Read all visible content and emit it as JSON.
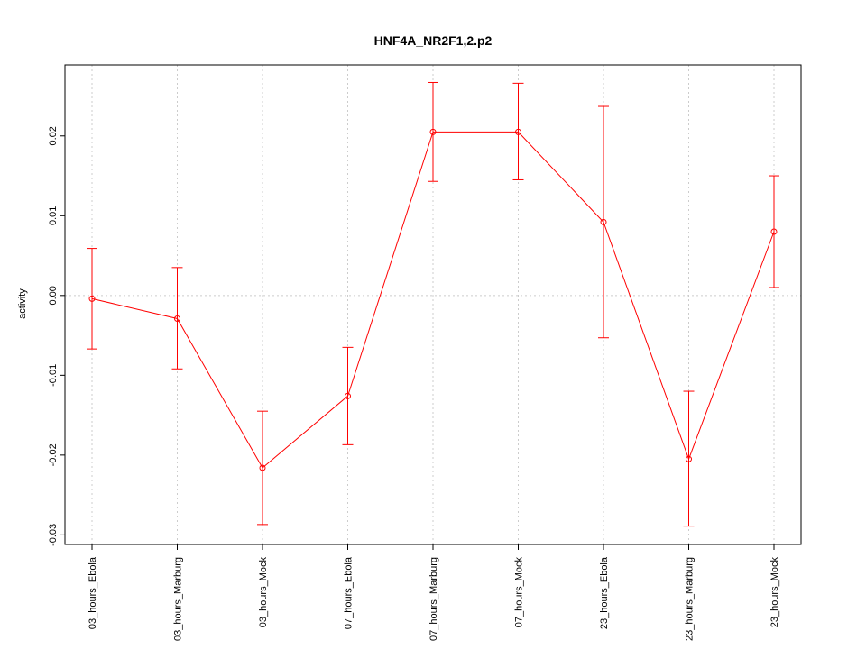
{
  "chart_data": {
    "type": "line",
    "title": "HNF4A_NR2F1,2.p2",
    "xlabel": "",
    "ylabel": "activity",
    "categories": [
      "03_hours_Ebola",
      "03_hours_Marburg",
      "03_hours_Mock",
      "07_hours_Ebola",
      "07_hours_Marburg",
      "07_hours_Mock",
      "23_hours_Ebola",
      "23_hours_Marburg",
      "23_hours_Mock"
    ],
    "values": [
      -0.0004,
      -0.0029,
      -0.0216,
      -0.0126,
      0.0205,
      0.0205,
      0.0092,
      -0.0205,
      0.008
    ],
    "error_low": [
      -0.0067,
      -0.0092,
      -0.0287,
      -0.0187,
      0.0143,
      0.0145,
      -0.0053,
      -0.0289,
      0.001
    ],
    "error_high": [
      0.0059,
      0.0035,
      -0.0145,
      -0.0065,
      0.0267,
      0.0266,
      0.0237,
      -0.012,
      0.015
    ],
    "yticks": [
      -0.03,
      -0.02,
      -0.01,
      0.0,
      0.01,
      0.02
    ],
    "ytick_labels": [
      "-0.03",
      "-0.02",
      "-0.01",
      "0.00",
      "0.01",
      "0.02"
    ],
    "ylim": [
      -0.0312,
      0.0289
    ],
    "grid": true,
    "color": "#ff0000"
  }
}
